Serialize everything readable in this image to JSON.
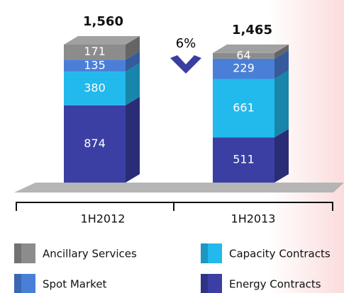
{
  "chart_data": {
    "type": "stacked_bar_3d",
    "categories": [
      "1H2012",
      "1H2013"
    ],
    "series": [
      {
        "name": "Energy Contracts",
        "color": "#3b3fa3",
        "values": [
          874,
          511
        ]
      },
      {
        "name": "Capacity Contracts",
        "color": "#22b9ec",
        "values": [
          380,
          661
        ]
      },
      {
        "name": "Spot Market",
        "color": "#4a7fd8",
        "values": [
          135,
          229
        ]
      },
      {
        "name": "Ancillary Services",
        "color": "#8c8c8c",
        "values": [
          171,
          64
        ]
      }
    ],
    "totals": [
      1560,
      1465
    ],
    "total_labels": [
      "1,560",
      "1,465"
    ],
    "annotation": "6%"
  }
}
